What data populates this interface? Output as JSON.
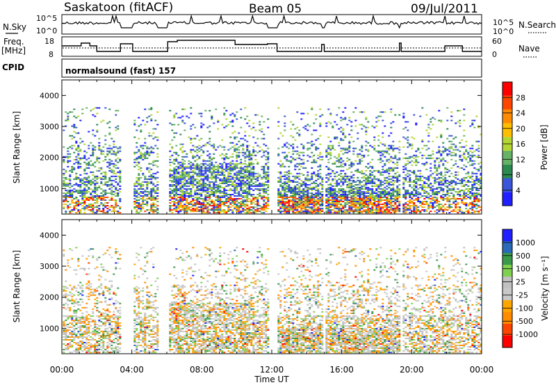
{
  "header": {
    "station": "Saskatoon (fitACF)",
    "beam": "Beam 05",
    "date": "09/Jul/2011"
  },
  "panels": {
    "nsky_label": "N.Sky",
    "nsky_ticks": [
      "10^5",
      "10^0"
    ],
    "nsearch_label": "N.Search",
    "nsearch_ticks": [
      "10^5",
      "10^0"
    ],
    "freq_label": "Freq.",
    "freq_unit": "[MHz]",
    "freq_ticks": [
      18,
      8
    ],
    "nave_label": "Nave",
    "nave_ticks": [
      60,
      0
    ],
    "cpid_label": "CPID",
    "cpid_value": "normalsound (fast) 157"
  },
  "colors": {
    "power": [
      "#1f1fff",
      "#3a55d8",
      "#2a8a50",
      "#66b266",
      "#b3d632",
      "#ffbf00",
      "#ff8c00",
      "#ff4500",
      "#ff0000"
    ],
    "velocity": [
      "#ff0000",
      "#ff4500",
      "#ff8c00",
      "#ffa500",
      "#c8c8c8",
      "#c0c0c0",
      "#7fd04f",
      "#3a9a4a",
      "#2a6ab8",
      "#1f1fff"
    ]
  },
  "chart_data": [
    {
      "type": "heatmap",
      "name": "power",
      "ylabel": "Slant Range [km]",
      "yticks": [
        1000,
        2000,
        3000,
        4000
      ],
      "ylim": [
        180,
        4500
      ],
      "xlim": [
        0,
        24
      ],
      "colorbar_label": "Power [dB]",
      "colorbar_ticks": [
        4,
        8,
        12,
        16,
        20,
        24,
        28
      ],
      "colorbar_range": [
        0,
        32
      ]
    },
    {
      "type": "heatmap",
      "name": "velocity",
      "ylabel": "Slant Range [km]",
      "yticks": [
        1000,
        2000,
        3000,
        4000
      ],
      "ylim": [
        180,
        4500
      ],
      "xlim": [
        0,
        24
      ],
      "colorbar_label": "Velocity [m s⁻¹]",
      "colorbar_ticks": [
        1000,
        500,
        100,
        25,
        -25,
        -100,
        -500,
        -1000
      ],
      "colorbar_range": [
        -1000,
        1000
      ]
    }
  ],
  "xaxis": {
    "label": "Time UT",
    "ticks": [
      "00:00",
      "04:00",
      "08:00",
      "12:00",
      "16:00",
      "20:00",
      "00:00"
    ],
    "tick_hours": [
      0,
      4,
      8,
      12,
      16,
      20,
      24
    ]
  },
  "data_gaps_hours": [
    [
      3.35,
      4.05
    ],
    [
      5.45,
      6.05
    ],
    [
      11.75,
      12.3
    ],
    [
      14.85,
      15.0
    ],
    [
      19.3,
      19.4
    ]
  ]
}
